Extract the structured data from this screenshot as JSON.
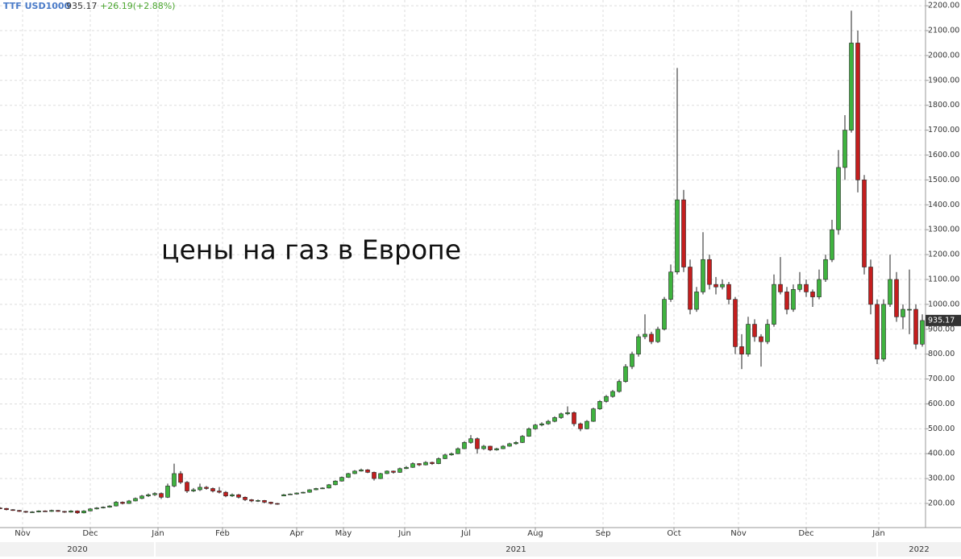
{
  "chart_data": {
    "type": "candlestick",
    "symbol": "TTF USD1000",
    "last_price": 935.17,
    "change": "+26.19(+2.88%)",
    "annotation": "цены на газ в Европе",
    "up_color": "#3fb33f",
    "down_color": "#c41e1e",
    "grid": true,
    "ylim": [
      103,
      2223
    ],
    "yticks": [
      {
        "value": 200,
        "label": "200.00"
      },
      {
        "value": 300,
        "label": "300.00"
      },
      {
        "value": 400,
        "label": "400.00"
      },
      {
        "value": 500,
        "label": "500.00"
      },
      {
        "value": 600,
        "label": "600.00"
      },
      {
        "value": 700,
        "label": "700.00"
      },
      {
        "value": 800,
        "label": "800.00"
      },
      {
        "value": 900,
        "label": "900.00"
      },
      {
        "value": 1000,
        "label": "1000.00"
      },
      {
        "value": 1100,
        "label": "1100.00"
      },
      {
        "value": 1200,
        "label": "1200.00"
      },
      {
        "value": 1300,
        "label": "1300.00"
      },
      {
        "value": 1400,
        "label": "1400.00"
      },
      {
        "value": 1500,
        "label": "1500.00"
      },
      {
        "value": 1600,
        "label": "1600.00"
      },
      {
        "value": 1700,
        "label": "1700.00"
      },
      {
        "value": 1800,
        "label": "1800.00"
      },
      {
        "value": 1900,
        "label": "1900.00"
      },
      {
        "value": 2000,
        "label": "2000.00"
      },
      {
        "value": 2100,
        "label": "2100.00"
      },
      {
        "value": 2200,
        "label": "2200.00"
      }
    ],
    "xlim": [
      0,
      287
    ],
    "xticks": [
      {
        "value": 7,
        "label": "Nov"
      },
      {
        "value": 28,
        "label": "Dec"
      },
      {
        "value": 49,
        "label": "Jan"
      },
      {
        "value": 69,
        "label": "Feb"
      },
      {
        "value": 92,
        "label": "Apr"
      },
      {
        "value": 106.5,
        "label": "May"
      },
      {
        "value": 125.5,
        "label": "Jun"
      },
      {
        "value": 144.5,
        "label": "Jul"
      },
      {
        "value": 166,
        "label": "Aug"
      },
      {
        "value": 187,
        "label": "Sep"
      },
      {
        "value": 209,
        "label": "Oct"
      },
      {
        "value": 229,
        "label": "Nov"
      },
      {
        "value": 250,
        "label": "Dec"
      },
      {
        "value": 272.5,
        "label": "Jan"
      }
    ],
    "year_ticks": [
      {
        "value": 0,
        "label": "2020"
      },
      {
        "value": 48,
        "label": "2021"
      },
      {
        "value": 272,
        "label": "2022"
      }
    ],
    "x": [
      0,
      2,
      4,
      6,
      8,
      10,
      12,
      14,
      16,
      18,
      20,
      22,
      24,
      26,
      28,
      30,
      32,
      34,
      36,
      38,
      40,
      42,
      44,
      46,
      48,
      50,
      52,
      54,
      56,
      58,
      60,
      62,
      64,
      66,
      68,
      70,
      72,
      74,
      76,
      78,
      80,
      82,
      84,
      86,
      88,
      90,
      92,
      94,
      96,
      98,
      100,
      102,
      104,
      106,
      108,
      110,
      112,
      114,
      116,
      118,
      120,
      122,
      124,
      126,
      128,
      130,
      132,
      134,
      136,
      138,
      140,
      142,
      144,
      146,
      148,
      150,
      152,
      154,
      156,
      158,
      160,
      162,
      164,
      166,
      168,
      170,
      172,
      174,
      176,
      178,
      180,
      182,
      184,
      186,
      188,
      190,
      192,
      194,
      196,
      198,
      200,
      202,
      204,
      206,
      208,
      210,
      212,
      214,
      216,
      218,
      220,
      222,
      224,
      226,
      228,
      230,
      232,
      234,
      236,
      238,
      240,
      242,
      244,
      246,
      248,
      250,
      252,
      254,
      256,
      258,
      260,
      262,
      264,
      266,
      268,
      270,
      272,
      274,
      276,
      278,
      280,
      282,
      284,
      286
    ],
    "ohlc": [
      [
        182,
        185,
        177,
        180
      ],
      [
        180,
        182,
        172,
        175
      ],
      [
        175,
        177,
        170,
        172
      ],
      [
        172,
        174,
        166,
        168
      ],
      [
        168,
        170,
        162,
        165
      ],
      [
        165,
        169,
        163,
        166
      ],
      [
        166,
        172,
        164,
        170
      ],
      [
        170,
        172,
        166,
        168
      ],
      [
        168,
        175,
        166,
        172
      ],
      [
        172,
        174,
        166,
        168
      ],
      [
        168,
        170,
        162,
        165
      ],
      [
        165,
        173,
        163,
        170
      ],
      [
        170,
        172,
        158,
        162
      ],
      [
        162,
        173,
        160,
        170
      ],
      [
        170,
        181,
        168,
        178
      ],
      [
        178,
        185,
        176,
        182
      ],
      [
        182,
        188,
        180,
        185
      ],
      [
        185,
        193,
        183,
        190
      ],
      [
        190,
        210,
        188,
        205
      ],
      [
        205,
        208,
        196,
        200
      ],
      [
        200,
        214,
        198,
        210
      ],
      [
        210,
        224,
        208,
        220
      ],
      [
        220,
        234,
        217,
        230
      ],
      [
        230,
        240,
        226,
        235
      ],
      [
        235,
        245,
        230,
        240
      ],
      [
        240,
        244,
        218,
        225
      ],
      [
        225,
        280,
        222,
        270
      ],
      [
        270,
        360,
        265,
        320
      ],
      [
        320,
        330,
        278,
        285
      ],
      [
        285,
        290,
        242,
        250
      ],
      [
        250,
        262,
        246,
        255
      ],
      [
        255,
        280,
        250,
        265
      ],
      [
        265,
        270,
        255,
        260
      ],
      [
        260,
        264,
        244,
        250
      ],
      [
        250,
        266,
        240,
        245
      ],
      [
        245,
        250,
        225,
        230
      ],
      [
        230,
        240,
        226,
        235
      ],
      [
        235,
        238,
        220,
        225
      ],
      [
        225,
        228,
        210,
        215
      ],
      [
        215,
        218,
        205,
        210
      ],
      [
        210,
        216,
        206,
        212
      ],
      [
        212,
        214,
        200,
        205
      ],
      [
        205,
        207,
        196,
        200
      ],
      [
        200,
        202,
        195,
        198
      ],
      [
        230,
        238,
        230,
        235
      ],
      [
        235,
        240,
        234,
        238
      ],
      [
        238,
        244,
        236,
        242
      ],
      [
        242,
        247,
        240,
        245
      ],
      [
        245,
        257,
        243,
        255
      ],
      [
        255,
        263,
        253,
        260
      ],
      [
        260,
        265,
        258,
        262
      ],
      [
        262,
        278,
        260,
        275
      ],
      [
        275,
        293,
        273,
        290
      ],
      [
        290,
        308,
        288,
        305
      ],
      [
        305,
        323,
        303,
        320
      ],
      [
        320,
        334,
        318,
        330
      ],
      [
        330,
        340,
        328,
        335
      ],
      [
        335,
        338,
        322,
        325
      ],
      [
        325,
        328,
        292,
        300
      ],
      [
        300,
        323,
        298,
        320
      ],
      [
        320,
        333,
        318,
        330
      ],
      [
        330,
        332,
        320,
        325
      ],
      [
        325,
        344,
        323,
        340
      ],
      [
        340,
        350,
        338,
        345
      ],
      [
        345,
        365,
        343,
        360
      ],
      [
        360,
        362,
        350,
        355
      ],
      [
        355,
        370,
        353,
        365
      ],
      [
        365,
        368,
        355,
        360
      ],
      [
        360,
        385,
        358,
        380
      ],
      [
        380,
        400,
        378,
        395
      ],
      [
        395,
        405,
        392,
        400
      ],
      [
        400,
        425,
        398,
        420
      ],
      [
        420,
        450,
        418,
        445
      ],
      [
        445,
        475,
        440,
        460
      ],
      [
        460,
        465,
        400,
        420
      ],
      [
        420,
        435,
        415,
        430
      ],
      [
        430,
        432,
        410,
        415
      ],
      [
        415,
        424,
        412,
        420
      ],
      [
        420,
        434,
        418,
        430
      ],
      [
        430,
        444,
        428,
        440
      ],
      [
        440,
        450,
        436,
        445
      ],
      [
        445,
        475,
        443,
        470
      ],
      [
        470,
        505,
        468,
        500
      ],
      [
        500,
        520,
        496,
        515
      ],
      [
        515,
        526,
        510,
        520
      ],
      [
        520,
        536,
        516,
        530
      ],
      [
        530,
        550,
        526,
        545
      ],
      [
        545,
        565,
        540,
        560
      ],
      [
        560,
        590,
        555,
        565
      ],
      [
        565,
        570,
        510,
        520
      ],
      [
        520,
        525,
        490,
        500
      ],
      [
        500,
        535,
        498,
        530
      ],
      [
        530,
        585,
        528,
        580
      ],
      [
        580,
        615,
        576,
        610
      ],
      [
        610,
        636,
        605,
        630
      ],
      [
        630,
        656,
        625,
        650
      ],
      [
        650,
        698,
        645,
        690
      ],
      [
        690,
        760,
        685,
        750
      ],
      [
        750,
        810,
        740,
        800
      ],
      [
        800,
        880,
        790,
        870
      ],
      [
        870,
        960,
        860,
        880
      ],
      [
        880,
        890,
        840,
        850
      ],
      [
        850,
        910,
        845,
        900
      ],
      [
        900,
        1030,
        895,
        1020
      ],
      [
        1020,
        1160,
        1010,
        1130
      ],
      [
        1130,
        1950,
        1120,
        1420
      ],
      [
        1420,
        1460,
        1130,
        1150
      ],
      [
        1150,
        1180,
        960,
        980
      ],
      [
        980,
        1070,
        970,
        1050
      ],
      [
        1050,
        1290,
        1040,
        1180
      ],
      [
        1180,
        1200,
        1060,
        1080
      ],
      [
        1080,
        1110,
        1040,
        1070
      ],
      [
        1070,
        1100,
        1060,
        1080
      ],
      [
        1080,
        1090,
        1000,
        1020
      ],
      [
        1020,
        1030,
        800,
        830
      ],
      [
        830,
        880,
        740,
        800
      ],
      [
        800,
        950,
        790,
        920
      ],
      [
        920,
        940,
        850,
        870
      ],
      [
        870,
        880,
        750,
        850
      ],
      [
        850,
        940,
        840,
        920
      ],
      [
        920,
        1120,
        910,
        1080
      ],
      [
        1080,
        1190,
        1040,
        1050
      ],
      [
        1050,
        1070,
        960,
        980
      ],
      [
        980,
        1080,
        970,
        1060
      ],
      [
        1060,
        1130,
        1050,
        1080
      ],
      [
        1080,
        1100,
        1030,
        1050
      ],
      [
        1050,
        1060,
        990,
        1030
      ],
      [
        1030,
        1140,
        1020,
        1100
      ],
      [
        1100,
        1200,
        1090,
        1180
      ],
      [
        1180,
        1340,
        1170,
        1300
      ],
      [
        1300,
        1620,
        1280,
        1550
      ],
      [
        1550,
        1760,
        1500,
        1700
      ],
      [
        1700,
        2180,
        1690,
        2050
      ],
      [
        2050,
        2100,
        1450,
        1500
      ],
      [
        1500,
        1520,
        1120,
        1150
      ],
      [
        1150,
        1180,
        960,
        1000
      ],
      [
        1000,
        1020,
        760,
        780
      ],
      [
        780,
        1020,
        770,
        1000
      ],
      [
        1000,
        1200,
        990,
        1100
      ],
      [
        1100,
        1130,
        930,
        950
      ],
      [
        950,
        1000,
        900,
        980
      ],
      [
        980,
        1140,
        880,
        980
      ],
      [
        980,
        1000,
        820,
        840
      ],
      [
        840,
        960,
        830,
        935
      ]
    ]
  }
}
